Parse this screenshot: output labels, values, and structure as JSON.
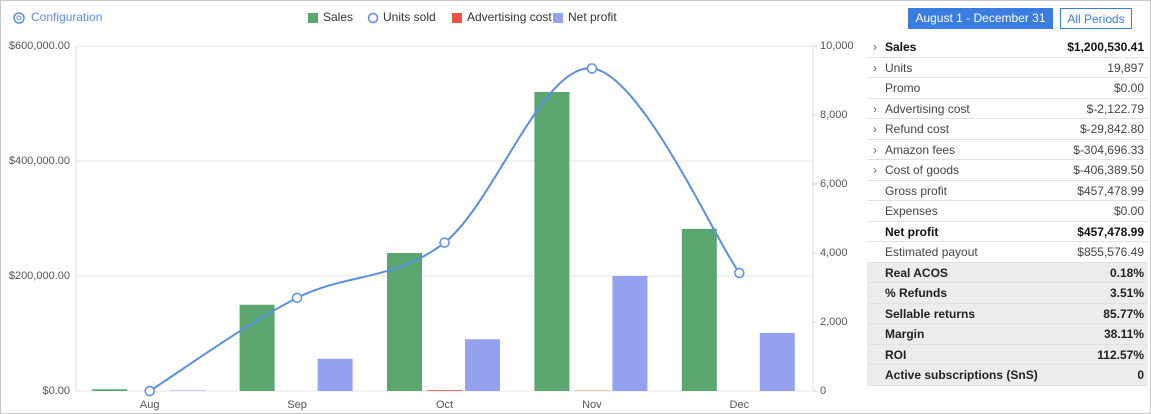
{
  "configuration": "Configuration",
  "date_range": "August 1 - December 31",
  "period_button": "All Periods",
  "chart_data": {
    "type": "bar",
    "categories": [
      "Aug",
      "Sep",
      "Oct",
      "Nov",
      "Dec"
    ],
    "series": [
      {
        "name": "Sales",
        "type": "bar",
        "color": "#5aa66e",
        "values": [
          3000,
          150000,
          240000,
          520000,
          282000
        ]
      },
      {
        "name": "Units sold",
        "type": "line",
        "axis": "y2",
        "color": "#5b8ee6",
        "values": [
          0,
          2700,
          4300,
          9350,
          3420
        ]
      },
      {
        "name": "Advertising cost",
        "type": "bar",
        "color": "#e8573f",
        "values": [
          0,
          0,
          1500,
          600,
          0
        ]
      },
      {
        "name": "Net profit",
        "type": "bar",
        "color": "#94a1ef",
        "values": [
          1000,
          56000,
          90000,
          200000,
          101000
        ]
      }
    ],
    "ylim": [
      0,
      600000
    ],
    "yticks": [
      {
        "value": 0,
        "label": "$0.00"
      },
      {
        "value": 200000,
        "label": "$200,000.00"
      },
      {
        "value": 400000,
        "label": "$400,000.00"
      },
      {
        "value": 600000,
        "label": "$600,000.00"
      }
    ],
    "y2lim": [
      0,
      10000
    ],
    "y2ticks": [
      0,
      {
        "value": 2000,
        "label": "2,000"
      },
      {
        "value": 4000,
        "label": "4,000"
      },
      {
        "value": 6000,
        "label": "6,000"
      },
      {
        "value": 8000,
        "label": "8,000"
      },
      {
        "value": 10000,
        "label": "10,000"
      }
    ],
    "grid": true,
    "legend": "top"
  },
  "summary": {
    "rows": [
      [
        "Sales",
        "$1,200,530.41"
      ],
      [
        "Units",
        "19,897"
      ],
      [
        "Promo",
        "$0.00"
      ],
      [
        "Advertising cost",
        "$-2,122.79"
      ],
      [
        "Refund cost",
        "$-29,842.80"
      ],
      [
        "Amazon fees",
        "$-304,696.33"
      ],
      [
        "Cost of goods",
        "$-406,389.50"
      ],
      [
        "Gross profit",
        "$457,478.99"
      ],
      [
        "Expenses",
        "$0.00"
      ],
      [
        "Net profit",
        "$457,478.99"
      ],
      [
        "Estimated payout",
        "$855,576.49"
      ],
      [
        "Real ACOS",
        "0.18%"
      ],
      [
        "% Refunds",
        "3.51%"
      ],
      [
        "Sellable returns",
        "85.77%"
      ],
      [
        "Margin",
        "38.11%"
      ],
      [
        "ROI",
        "112.57%"
      ],
      [
        "Active subscriptions (SnS)",
        "0"
      ]
    ]
  }
}
